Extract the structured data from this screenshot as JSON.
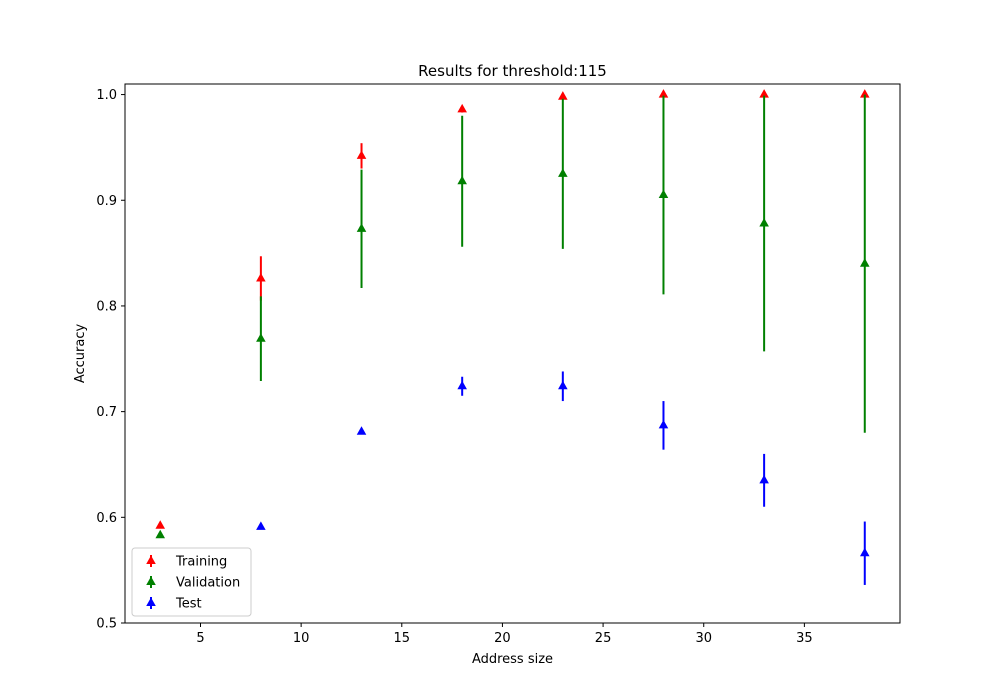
{
  "chart_data": {
    "type": "scatter",
    "title": "Results for threshold:115",
    "xlabel": "Address size",
    "ylabel": "Accuracy",
    "xlim": [
      1.25,
      39.75
    ],
    "ylim": [
      0.5,
      1.01
    ],
    "xticks": [
      5,
      10,
      15,
      20,
      25,
      30,
      35
    ],
    "yticks": [
      0.5,
      0.6,
      0.7,
      0.8,
      0.9,
      1.0
    ],
    "ytick_labels": [
      "0.5",
      "0.6",
      "0.7",
      "0.8",
      "0.9",
      "1.0"
    ],
    "marker": "triangle-up",
    "error_bars": true,
    "legend_position": "lower-left",
    "series": [
      {
        "name": "Training",
        "color": "#ff0000",
        "x": [
          3,
          8,
          13,
          18,
          23,
          28,
          33,
          38
        ],
        "y": [
          0.592,
          0.826,
          0.942,
          0.986,
          0.998,
          1.0,
          1.0,
          1.0
        ],
        "err": [
          0.0,
          0.021,
          0.012,
          0.003,
          0.002,
          0.0,
          0.0,
          0.0
        ]
      },
      {
        "name": "Validation",
        "color": "#008000",
        "x": [
          3,
          8,
          13,
          18,
          23,
          28,
          33,
          38
        ],
        "y": [
          0.583,
          0.769,
          0.873,
          0.918,
          0.925,
          0.905,
          0.878,
          0.84
        ],
        "err": [
          0.0,
          0.04,
          0.056,
          0.062,
          0.071,
          0.094,
          0.121,
          0.16
        ]
      },
      {
        "name": "Test",
        "color": "#0000ff",
        "x": [
          3,
          8,
          13,
          18,
          23,
          28,
          33,
          38
        ],
        "y": [
          null,
          0.591,
          0.681,
          0.724,
          0.724,
          0.687,
          0.635,
          0.566
        ],
        "err": [
          null,
          0.0,
          0.0,
          0.009,
          0.014,
          0.023,
          0.025,
          0.03
        ]
      }
    ]
  }
}
